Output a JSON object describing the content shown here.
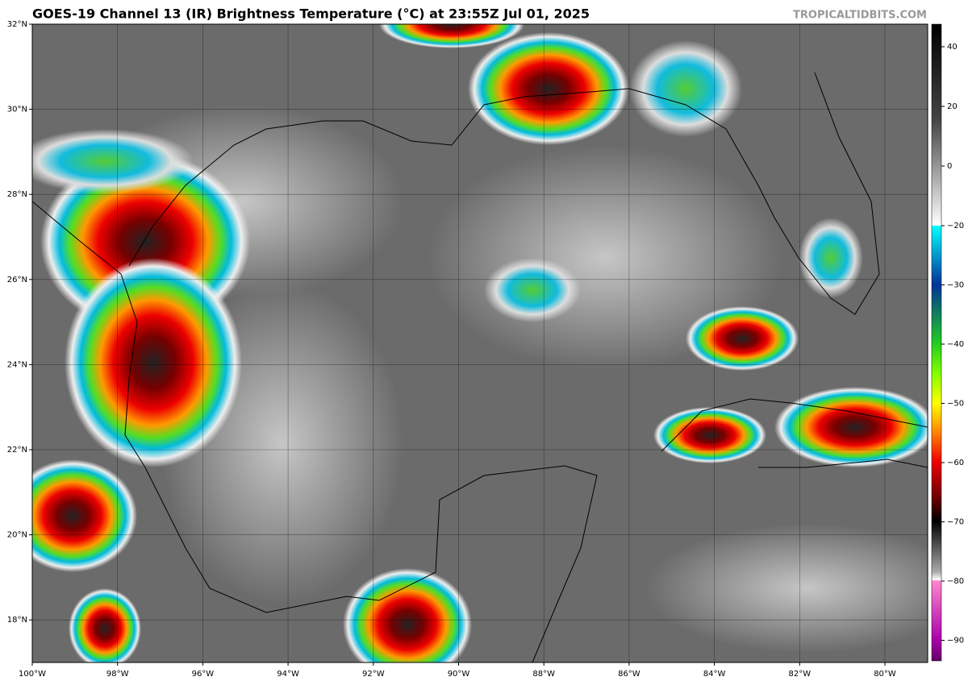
{
  "header": {
    "title": "GOES-19 Channel 13 (IR) Brightness Temperature (°C) at 23:55Z Jul 01, 2025",
    "watermark": "TROPICALTIDBITS.COM"
  },
  "map": {
    "lat_ticks": [
      {
        "value": 32,
        "label": "32°N"
      },
      {
        "value": 30,
        "label": "30°N"
      },
      {
        "value": 28,
        "label": "28°N"
      },
      {
        "value": 26,
        "label": "26°N"
      },
      {
        "value": 24,
        "label": "24°N"
      },
      {
        "value": 22,
        "label": "22°N"
      },
      {
        "value": 20,
        "label": "20°N"
      },
      {
        "value": 18,
        "label": "18°N"
      }
    ],
    "lon_ticks": [
      {
        "value": -100,
        "label": "100°W"
      },
      {
        "value": -98,
        "label": "98°W"
      },
      {
        "value": -96,
        "label": "96°W"
      },
      {
        "value": -94,
        "label": "94°W"
      },
      {
        "value": -92,
        "label": "92°W"
      },
      {
        "value": -90,
        "label": "90°W"
      },
      {
        "value": -88,
        "label": "88°W"
      },
      {
        "value": -86,
        "label": "86°W"
      },
      {
        "value": -84,
        "label": "84°W"
      },
      {
        "value": -82,
        "label": "82°W"
      },
      {
        "value": -80,
        "label": "80°W"
      }
    ]
  },
  "colorbar": {
    "ticks": [
      {
        "value": 40,
        "label": "40"
      },
      {
        "value": 20,
        "label": "20"
      },
      {
        "value": 0,
        "label": "0"
      },
      {
        "value": -20,
        "label": "−20"
      },
      {
        "value": -30,
        "label": "−30"
      },
      {
        "value": -40,
        "label": "−40"
      },
      {
        "value": -50,
        "label": "−50"
      },
      {
        "value": -60,
        "label": "−60"
      },
      {
        "value": -70,
        "label": "−70"
      },
      {
        "value": -80,
        "label": "−80"
      },
      {
        "value": -90,
        "label": "−90"
      }
    ]
  }
}
